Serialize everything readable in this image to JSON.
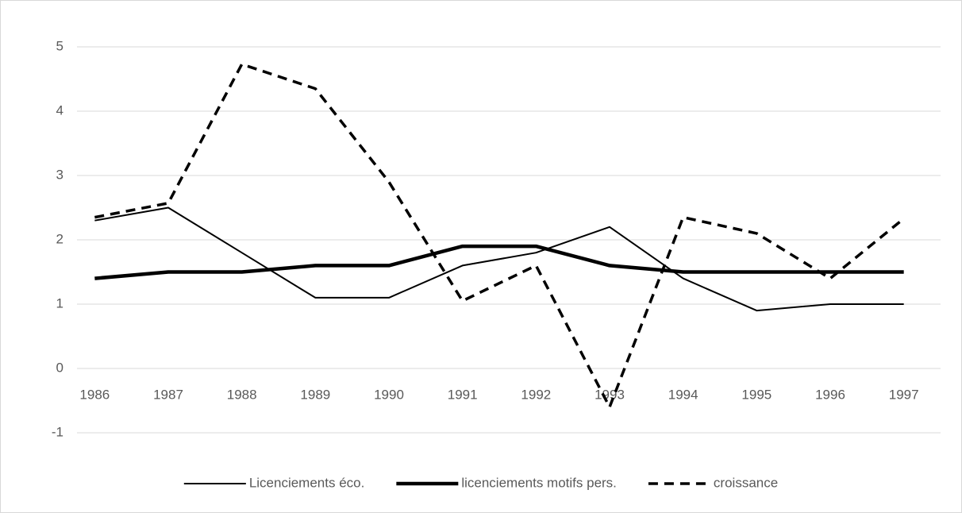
{
  "chart_data": {
    "type": "line",
    "categories": [
      "1986",
      "1987",
      "1988",
      "1989",
      "1990",
      "1991",
      "1992",
      "1993",
      "1994",
      "1995",
      "1996",
      "1997"
    ],
    "series": [
      {
        "name": "Licenciements éco.",
        "color": "#000000",
        "line_width": 2,
        "dash": "solid",
        "values": [
          2.3,
          2.5,
          1.8,
          1.1,
          1.1,
          1.6,
          1.8,
          2.2,
          1.4,
          0.9,
          1.0,
          1.0
        ]
      },
      {
        "name": "licenciements motifs pers.",
        "color": "#000000",
        "line_width": 4.5,
        "dash": "solid",
        "values": [
          1.4,
          1.5,
          1.5,
          1.6,
          1.6,
          1.9,
          1.9,
          1.6,
          1.5,
          1.5,
          1.5,
          1.5
        ]
      },
      {
        "name": "croissance",
        "color": "#000000",
        "line_width": 3.5,
        "dash": "dashed",
        "values": [
          2.35,
          2.57,
          4.73,
          4.35,
          2.9,
          1.05,
          1.6,
          -0.6,
          2.35,
          2.1,
          1.4,
          2.33
        ]
      }
    ],
    "ylim": [
      -1,
      5
    ],
    "yticks": [
      -1,
      0,
      1,
      2,
      3,
      4,
      5
    ],
    "grid": true,
    "legend": "bottom"
  }
}
